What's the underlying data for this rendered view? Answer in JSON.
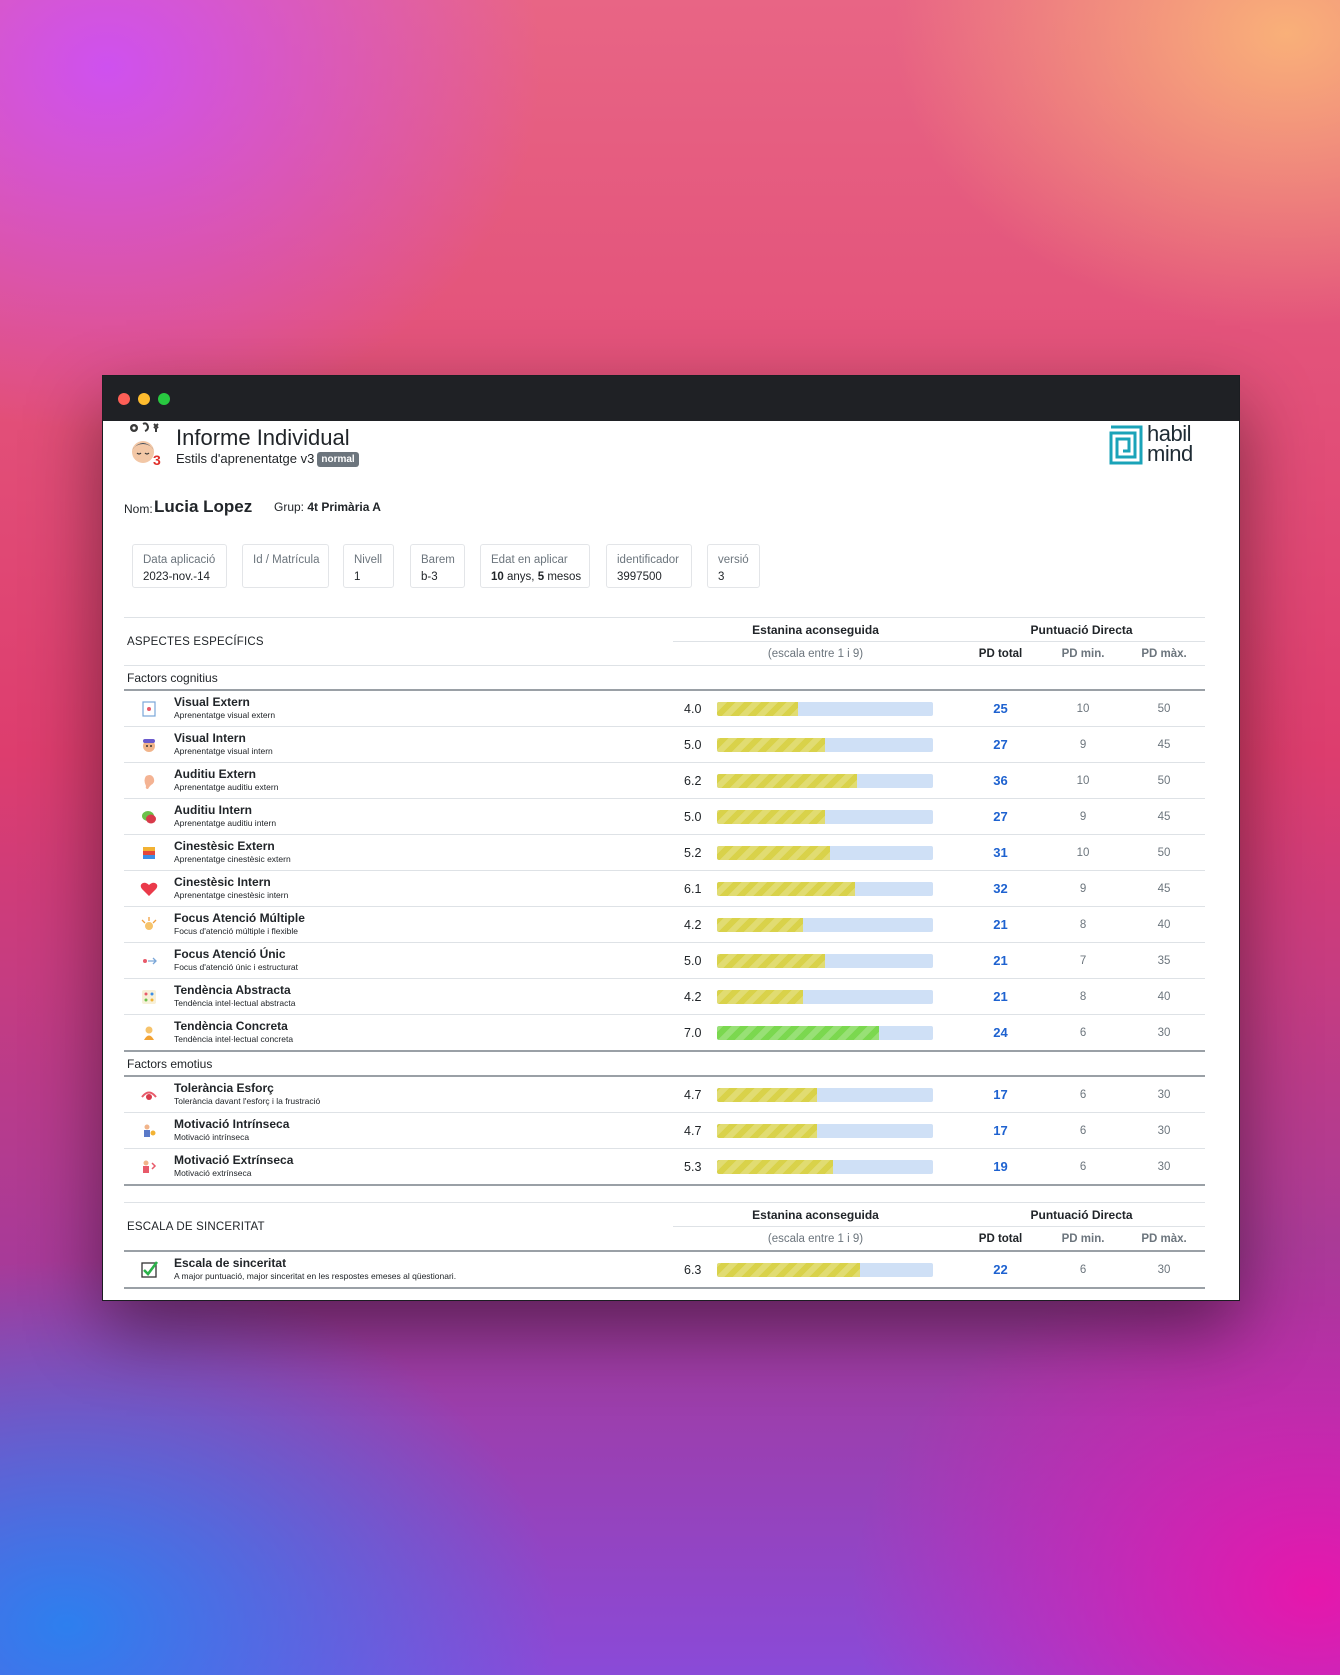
{
  "header": {
    "title": "Informe Individual",
    "subtitle": "Estils d'aprenentatge v3",
    "badge": "normal",
    "brand": {
      "line1": "habil",
      "line2": "mind",
      "color": "#1aa3b8"
    }
  },
  "student": {
    "name_label": "Nom:",
    "name": "Lucia Lopez",
    "group_label": "Grup:",
    "group": "4t Primària A"
  },
  "info": [
    {
      "label": "Data aplicació",
      "value": "2023-nov.-14"
    },
    {
      "label": "Id / Matrícula",
      "value": ""
    },
    {
      "label": "Nivell",
      "value": "1"
    },
    {
      "label": "Barem",
      "value": "b-3"
    },
    {
      "label": "Edat en aplicar",
      "years": "10",
      "years_unit": "anys,",
      "months": "5",
      "months_unit": "mesos"
    },
    {
      "label": "identificador",
      "value": "3997500"
    },
    {
      "label": "versió",
      "value": "3"
    }
  ],
  "specific": {
    "section_title": "ASPECTES ESPECÍFICS",
    "stanine_header": "Estanina aconseguida",
    "scale_note": "(escala entre 1 i 9)",
    "pd_header": "Puntuació Directa",
    "pd_total_header": "PD total",
    "pd_min_header": "PD min.",
    "pd_max_header": "PD màx.",
    "group_cognitive": "Factors cognitius",
    "group_emotional": "Factors emotius"
  },
  "sincerity": {
    "section_title": "ESCALA DE SINCERITAT",
    "stanine_header": "Estanina aconseguida",
    "scale_note": "(escala entre 1 i 9)",
    "pd_header": "Puntuació Directa",
    "pd_total_header": "PD total",
    "pd_min_header": "PD min.",
    "pd_max_header": "PD màx."
  },
  "cognitive_items": [
    {
      "icon": "visual-external-icon",
      "name": "Visual Extern",
      "desc": "Aprenentatge visual extern",
      "score": "4.0",
      "stanine": 4.0,
      "pd_total": "25",
      "pd_min": "10",
      "pd_max": "50",
      "bar_color": "#d9d24a"
    },
    {
      "icon": "visual-internal-icon",
      "name": "Visual Intern",
      "desc": "Aprenentatge visual intern",
      "score": "5.0",
      "stanine": 5.0,
      "pd_total": "27",
      "pd_min": "9",
      "pd_max": "45",
      "bar_color": "#d9d24a"
    },
    {
      "icon": "ear-icon",
      "name": "Auditiu Extern",
      "desc": "Aprenentatge auditiu extern",
      "score": "6.2",
      "stanine": 6.2,
      "pd_total": "36",
      "pd_min": "10",
      "pd_max": "50",
      "bar_color": "#d9d24a"
    },
    {
      "icon": "speech-bubble-icon",
      "name": "Auditiu Intern",
      "desc": "Aprenentatge auditiu intern",
      "score": "5.0",
      "stanine": 5.0,
      "pd_total": "27",
      "pd_min": "9",
      "pd_max": "45",
      "bar_color": "#d9d24a"
    },
    {
      "icon": "building-blocks-icon",
      "name": "Cinestèsic Extern",
      "desc": "Aprenentatge cinestèsic extern",
      "score": "5.2",
      "stanine": 5.2,
      "pd_total": "31",
      "pd_min": "10",
      "pd_max": "50",
      "bar_color": "#d9d24a"
    },
    {
      "icon": "heart-icon",
      "name": "Cinestèsic Intern",
      "desc": "Aprenentatge cinestèsic intern",
      "score": "6.1",
      "stanine": 6.1,
      "pd_total": "32",
      "pd_min": "9",
      "pd_max": "45",
      "bar_color": "#d9d24a"
    },
    {
      "icon": "multiple-focus-icon",
      "name": "Focus Atenció Múltiple",
      "desc": "Focus d'atenció múltiple i flexible",
      "score": "4.2",
      "stanine": 4.2,
      "pd_total": "21",
      "pd_min": "8",
      "pd_max": "40",
      "bar_color": "#d9d24a"
    },
    {
      "icon": "single-focus-icon",
      "name": "Focus Atenció Únic",
      "desc": "Focus d'atenció únic i estructurat",
      "score": "5.0",
      "stanine": 5.0,
      "pd_total": "21",
      "pd_min": "7",
      "pd_max": "35",
      "bar_color": "#d9d24a"
    },
    {
      "icon": "abstract-grid-icon",
      "name": "Tendència Abstracta",
      "desc": "Tendència intel·lectual abstracta",
      "score": "4.2",
      "stanine": 4.2,
      "pd_total": "21",
      "pd_min": "8",
      "pd_max": "40",
      "bar_color": "#d9d24a"
    },
    {
      "icon": "concrete-figure-icon",
      "name": "Tendència Concreta",
      "desc": "Tendència intel·lectual concreta",
      "score": "7.0",
      "stanine": 7.0,
      "pd_total": "24",
      "pd_min": "6",
      "pd_max": "30",
      "bar_color": "#7bd84f"
    }
  ],
  "emotional_items": [
    {
      "icon": "effort-icon",
      "name": "Tolerància Esforç",
      "desc": "Tolerància davant l'esforç i la frustració",
      "score": "4.7",
      "stanine": 4.7,
      "pd_total": "17",
      "pd_min": "6",
      "pd_max": "30",
      "bar_color": "#d9d24a"
    },
    {
      "icon": "intrinsic-motivation-icon",
      "name": "Motivació Intrínseca",
      "desc": "Motivació intrínseca",
      "score": "4.7",
      "stanine": 4.7,
      "pd_total": "17",
      "pd_min": "6",
      "pd_max": "30",
      "bar_color": "#d9d24a"
    },
    {
      "icon": "extrinsic-motivation-icon",
      "name": "Motivació Extrínseca",
      "desc": "Motivació extrínseca",
      "score": "5.3",
      "stanine": 5.3,
      "pd_total": "19",
      "pd_min": "6",
      "pd_max": "30",
      "bar_color": "#d9d24a"
    }
  ],
  "sincerity_items": [
    {
      "icon": "checkbox-icon",
      "name": "Escala de sinceritat",
      "desc": "A major puntuació, major sinceritat en les respostes emeses al qüestionari.",
      "score": "6.3",
      "stanine": 6.3,
      "pd_total": "22",
      "pd_min": "6",
      "pd_max": "30",
      "bar_color": "#d9d24a"
    }
  ]
}
